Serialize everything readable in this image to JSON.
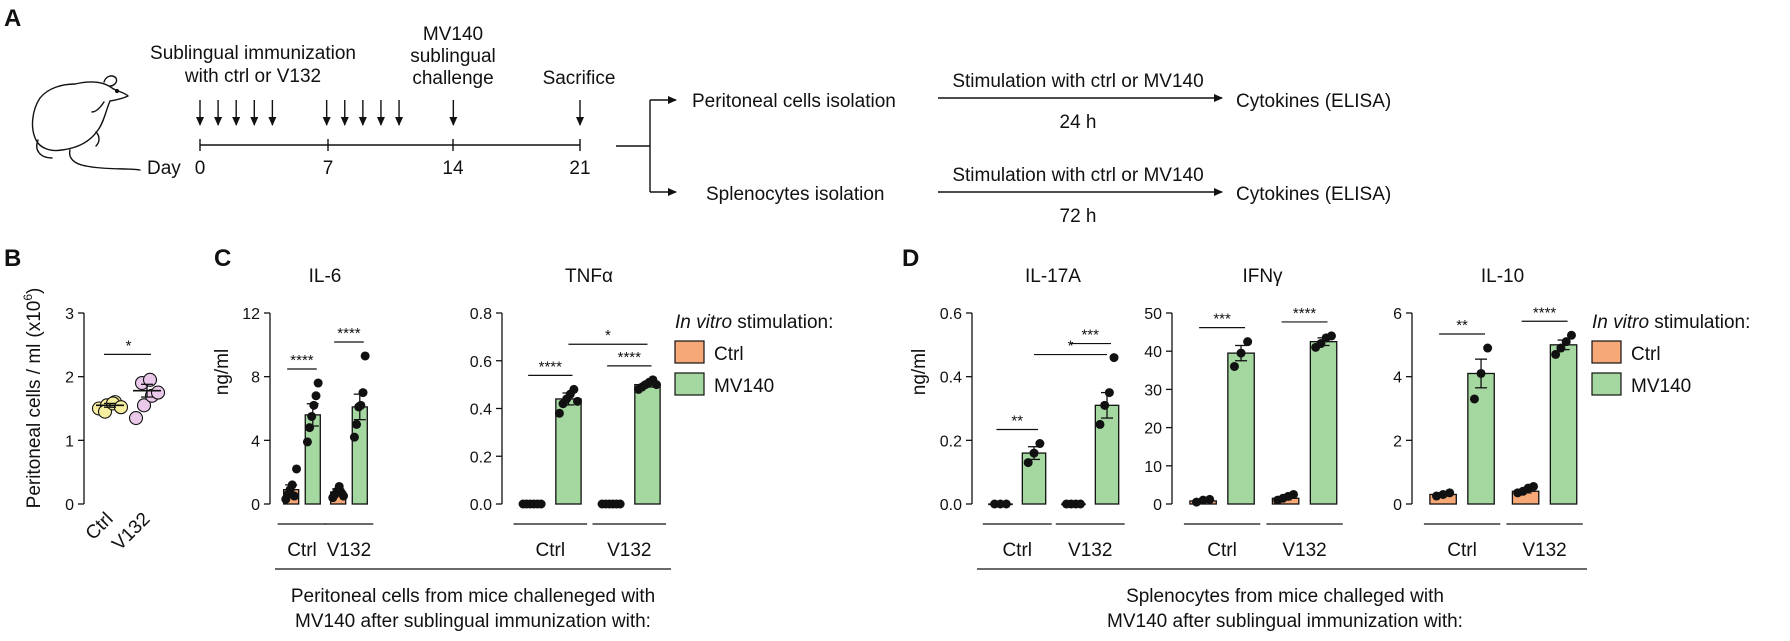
{
  "colors": {
    "ctrl": "#F6A877",
    "mv140": "#A5D7A0",
    "ctrl_dot": "#F7EFA0",
    "v132_dot": "#E9C8EA",
    "ink": "#111111"
  },
  "panelA": {
    "letter": "A",
    "immun_line1": "Sublingual immunization",
    "immun_line2": "with ctrl or V132",
    "challenge_line1": "MV140",
    "challenge_line2": "sublingual",
    "challenge_line3": "challenge",
    "sacrifice": "Sacrifice",
    "day_label": "Day",
    "days": [
      "0",
      "7",
      "14",
      "21"
    ],
    "row1_isolation": "Peritoneal cells isolation",
    "row1_stim": "Stimulation with ctrl or MV140",
    "row1_time": "24 h",
    "row1_out": "Cytokines (ELISA)",
    "row2_isolation": "Splenocytes isolation",
    "row2_stim": "Stimulation with ctrl or MV140",
    "row2_time": "72 h",
    "row2_out": "Cytokines (ELISA)"
  },
  "panelB": {
    "letter": "B",
    "ylabel": "Peritoneal cells / ml",
    "yunit": "(x10",
    "yunit_exp": "6",
    "yunit_close": ")",
    "sig": "*"
  },
  "panelC": {
    "letter": "C",
    "ylabel": "ng/ml",
    "group_caption_line1": "Peritoneal cells from mice challeneged with",
    "group_caption_line2": "MV140 after sublingual immunization with:"
  },
  "panelD": {
    "letter": "D",
    "ylabel": "ng/ml",
    "group_caption_line1": "Splenocytes from mice challeged with",
    "group_caption_line2": "MV140 after sublingual immunization with:"
  },
  "legend": {
    "title_italic": "In vitro",
    "title_rest": " stimulation:",
    "items": [
      "Ctrl",
      "MV140"
    ]
  },
  "chart_data": [
    {
      "id": "B",
      "type": "scatter",
      "title": "",
      "categories": [
        "Ctrl",
        "V132"
      ],
      "ylabel": "Peritoneal cells / ml (x10^6)",
      "ylim": [
        0,
        3
      ],
      "yticks": [
        "0",
        "1",
        "2",
        "3"
      ],
      "points": [
        [
          1.5,
          1.55,
          1.6,
          1.45,
          1.58,
          1.52
        ],
        [
          1.35,
          1.55,
          1.7,
          1.9,
          1.95,
          1.75
        ]
      ],
      "means": [
        1.55,
        1.78
      ],
      "sem": [
        0.03,
        0.1
      ],
      "significance": [
        {
          "pair": [
            0,
            1
          ],
          "label": "*"
        }
      ]
    },
    {
      "id": "C1",
      "type": "bar",
      "title": "IL-6",
      "groups": [
        "Ctrl",
        "V132"
      ],
      "series": [
        "Ctrl",
        "MV140"
      ],
      "ylim": [
        0,
        12
      ],
      "yticks": [
        "0",
        "4",
        "8",
        "12"
      ],
      "values": [
        [
          0.9,
          5.6
        ],
        [
          0.75,
          6.1
        ]
      ],
      "sem": [
        [
          0.3,
          0.7
        ],
        [
          0.2,
          0.8
        ]
      ],
      "points": [
        [
          [
            0.3,
            0.6,
            0.9,
            1.2,
            0.5,
            2.2
          ],
          [
            3.9,
            4.8,
            5.5,
            6.2,
            6.8,
            7.6
          ]
        ],
        [
          [
            0.4,
            0.6,
            0.8,
            1.1,
            0.7,
            0.5
          ],
          [
            4.2,
            5.0,
            6.1,
            6.2,
            7.0,
            9.3
          ]
        ]
      ],
      "significance": [
        {
          "label": "****",
          "groupLevel": false,
          "group": 0
        },
        {
          "label": "****",
          "groupLevel": false,
          "group": 1
        }
      ]
    },
    {
      "id": "C2",
      "type": "bar",
      "title": "TNFα",
      "groups": [
        "Ctrl",
        "V132"
      ],
      "series": [
        "Ctrl",
        "MV140"
      ],
      "ylim": [
        0,
        0.8
      ],
      "yticks": [
        "0.0",
        "0.2",
        "0.4",
        "0.6",
        "0.8"
      ],
      "values": [
        [
          0.0,
          0.44
        ],
        [
          0.0,
          0.5
        ]
      ],
      "sem": [
        [
          0.0,
          0.025
        ],
        [
          0.0,
          0.01
        ]
      ],
      "points": [
        [
          [
            0,
            0,
            0,
            0,
            0,
            0
          ],
          [
            0.38,
            0.42,
            0.44,
            0.46,
            0.48,
            0.43
          ]
        ],
        [
          [
            0,
            0,
            0,
            0,
            0,
            0
          ],
          [
            0.48,
            0.49,
            0.5,
            0.51,
            0.52,
            0.5
          ]
        ]
      ],
      "significance": [
        {
          "label": "****",
          "group": 0
        },
        {
          "label": "****",
          "group": 1
        },
        {
          "label": "*",
          "across": true
        }
      ]
    },
    {
      "id": "D1",
      "type": "bar",
      "title": "IL-17A",
      "groups": [
        "Ctrl",
        "V132"
      ],
      "series": [
        "Ctrl",
        "MV140"
      ],
      "ylim": [
        0,
        0.6
      ],
      "yticks": [
        "0.0",
        "0.2",
        "0.4",
        "0.6"
      ],
      "values": [
        [
          0.0,
          0.16
        ],
        [
          0.0,
          0.31
        ]
      ],
      "sem": [
        [
          0.0,
          0.02
        ],
        [
          0.0,
          0.04
        ]
      ],
      "points": [
        [
          [
            0,
            0,
            0
          ],
          [
            0.13,
            0.16,
            0.19
          ]
        ],
        [
          [
            0,
            0,
            0,
            0
          ],
          [
            0.25,
            0.31,
            0.35,
            0.46
          ]
        ]
      ],
      "significance": [
        {
          "label": "**",
          "group": 0
        },
        {
          "label": "***",
          "group": 1
        },
        {
          "label": "*",
          "across": true
        }
      ]
    },
    {
      "id": "D2",
      "type": "bar",
      "title": "IFNγ",
      "groups": [
        "Ctrl",
        "V132"
      ],
      "series": [
        "Ctrl",
        "MV140"
      ],
      "ylim": [
        0,
        50
      ],
      "yticks": [
        "0",
        "10",
        "20",
        "30",
        "40",
        "50"
      ],
      "values": [
        [
          0.8,
          39.5
        ],
        [
          1.5,
          42.5
        ]
      ],
      "sem": [
        [
          0.3,
          2.0
        ],
        [
          0.4,
          1.0
        ]
      ],
      "points": [
        [
          [
            0.5,
            1.0,
            1.2
          ],
          [
            36,
            39.5,
            42.5
          ]
        ],
        [
          [
            1.0,
            1.5,
            2.0,
            2.5
          ],
          [
            41,
            42,
            43.5,
            44
          ]
        ]
      ],
      "significance": [
        {
          "label": "***",
          "group": 0
        },
        {
          "label": "****",
          "group": 1
        }
      ]
    },
    {
      "id": "D3",
      "type": "bar",
      "title": "IL-10",
      "groups": [
        "Ctrl",
        "V132"
      ],
      "series": [
        "Ctrl",
        "MV140"
      ],
      "ylim": [
        0,
        6
      ],
      "yticks": [
        "0",
        "2",
        "4",
        "6"
      ],
      "values": [
        [
          0.3,
          4.1
        ],
        [
          0.4,
          5.0
        ]
      ],
      "sem": [
        [
          0.05,
          0.45
        ],
        [
          0.05,
          0.15
        ]
      ],
      "points": [
        [
          [
            0.25,
            0.3,
            0.35
          ],
          [
            3.3,
            4.1,
            4.9
          ]
        ],
        [
          [
            0.35,
            0.4,
            0.5,
            0.55
          ],
          [
            4.7,
            4.9,
            5.1,
            5.3
          ]
        ]
      ],
      "significance": [
        {
          "label": "**",
          "group": 0
        },
        {
          "label": "****",
          "group": 1
        }
      ]
    }
  ]
}
